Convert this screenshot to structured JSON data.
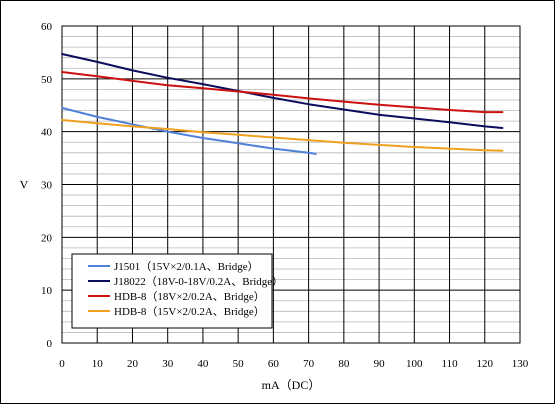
{
  "chart_data": {
    "type": "line",
    "title": "",
    "xlabel": "mA（DC）",
    "ylabel": "V",
    "xlim": [
      0,
      130
    ],
    "ylim": [
      0,
      60
    ],
    "x_ticks": [
      0,
      10,
      20,
      30,
      40,
      50,
      60,
      70,
      80,
      90,
      100,
      110,
      120,
      130
    ],
    "y_ticks": [
      0,
      10,
      20,
      30,
      40,
      50,
      60
    ],
    "grid": "major and minor horizontal, major vertical",
    "legend_position": "bottom-left",
    "series": [
      {
        "name": "J1501（15V×2/0.1A、Bridge）",
        "color": "#4f81d8",
        "x": [
          0,
          10,
          20,
          30,
          40,
          50,
          60,
          70,
          72
        ],
        "y": [
          44.5,
          42.8,
          41.4,
          40.0,
          38.8,
          37.8,
          36.8,
          36.0,
          35.8
        ]
      },
      {
        "name": "J18022（18V-0-18V/0.2A、Bridge）",
        "color": "#0c0c5c",
        "x": [
          0,
          10,
          20,
          30,
          40,
          50,
          60,
          70,
          80,
          90,
          100,
          110,
          120,
          125
        ],
        "y": [
          54.7,
          53.2,
          51.6,
          50.2,
          49.0,
          47.7,
          46.4,
          45.2,
          44.2,
          43.2,
          42.5,
          41.8,
          41.0,
          40.7
        ]
      },
      {
        "name": "HDB-8（18V×2/0.2A、Bridge）",
        "color": "#cc1111",
        "x": [
          0,
          10,
          20,
          30,
          40,
          50,
          60,
          70,
          80,
          90,
          100,
          110,
          120,
          125
        ],
        "y": [
          51.3,
          50.5,
          49.6,
          48.8,
          48.2,
          47.6,
          47.0,
          46.3,
          45.7,
          45.1,
          44.6,
          44.1,
          43.7,
          43.7
        ]
      },
      {
        "name": "HDB-8（15V×2/0.2A、Bridge）",
        "color": "#f0a020",
        "x": [
          0,
          10,
          20,
          30,
          40,
          50,
          60,
          70,
          80,
          90,
          100,
          110,
          120,
          125
        ],
        "y": [
          42.2,
          41.6,
          41.0,
          40.5,
          39.9,
          39.4,
          38.9,
          38.4,
          37.9,
          37.5,
          37.1,
          36.8,
          36.5,
          36.4
        ]
      }
    ]
  }
}
